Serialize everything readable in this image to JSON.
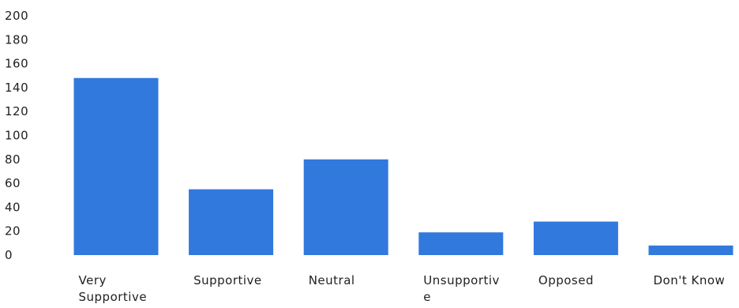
{
  "chart_data": {
    "type": "bar",
    "categories": [
      "Very Supportive",
      "Supportive",
      "Neutral",
      "Unsupportive",
      "Opposed",
      "Don't Know"
    ],
    "category_lines": [
      [
        "Very",
        "Supportive"
      ],
      [
        "Supportive"
      ],
      [
        "Neutral"
      ],
      [
        "Unsupportiv",
        "e"
      ],
      [
        "Opposed"
      ],
      [
        "Don't Know"
      ]
    ],
    "values": [
      148,
      55,
      80,
      19,
      28,
      8
    ],
    "ylim": [
      0,
      200
    ],
    "yticks": [
      "200",
      "180",
      "160",
      "140",
      "120",
      "100",
      "80",
      "60",
      "40",
      "20",
      "0"
    ],
    "grid": false,
    "bar_color": "#3279dd",
    "title": "",
    "xlabel": "",
    "ylabel": ""
  }
}
